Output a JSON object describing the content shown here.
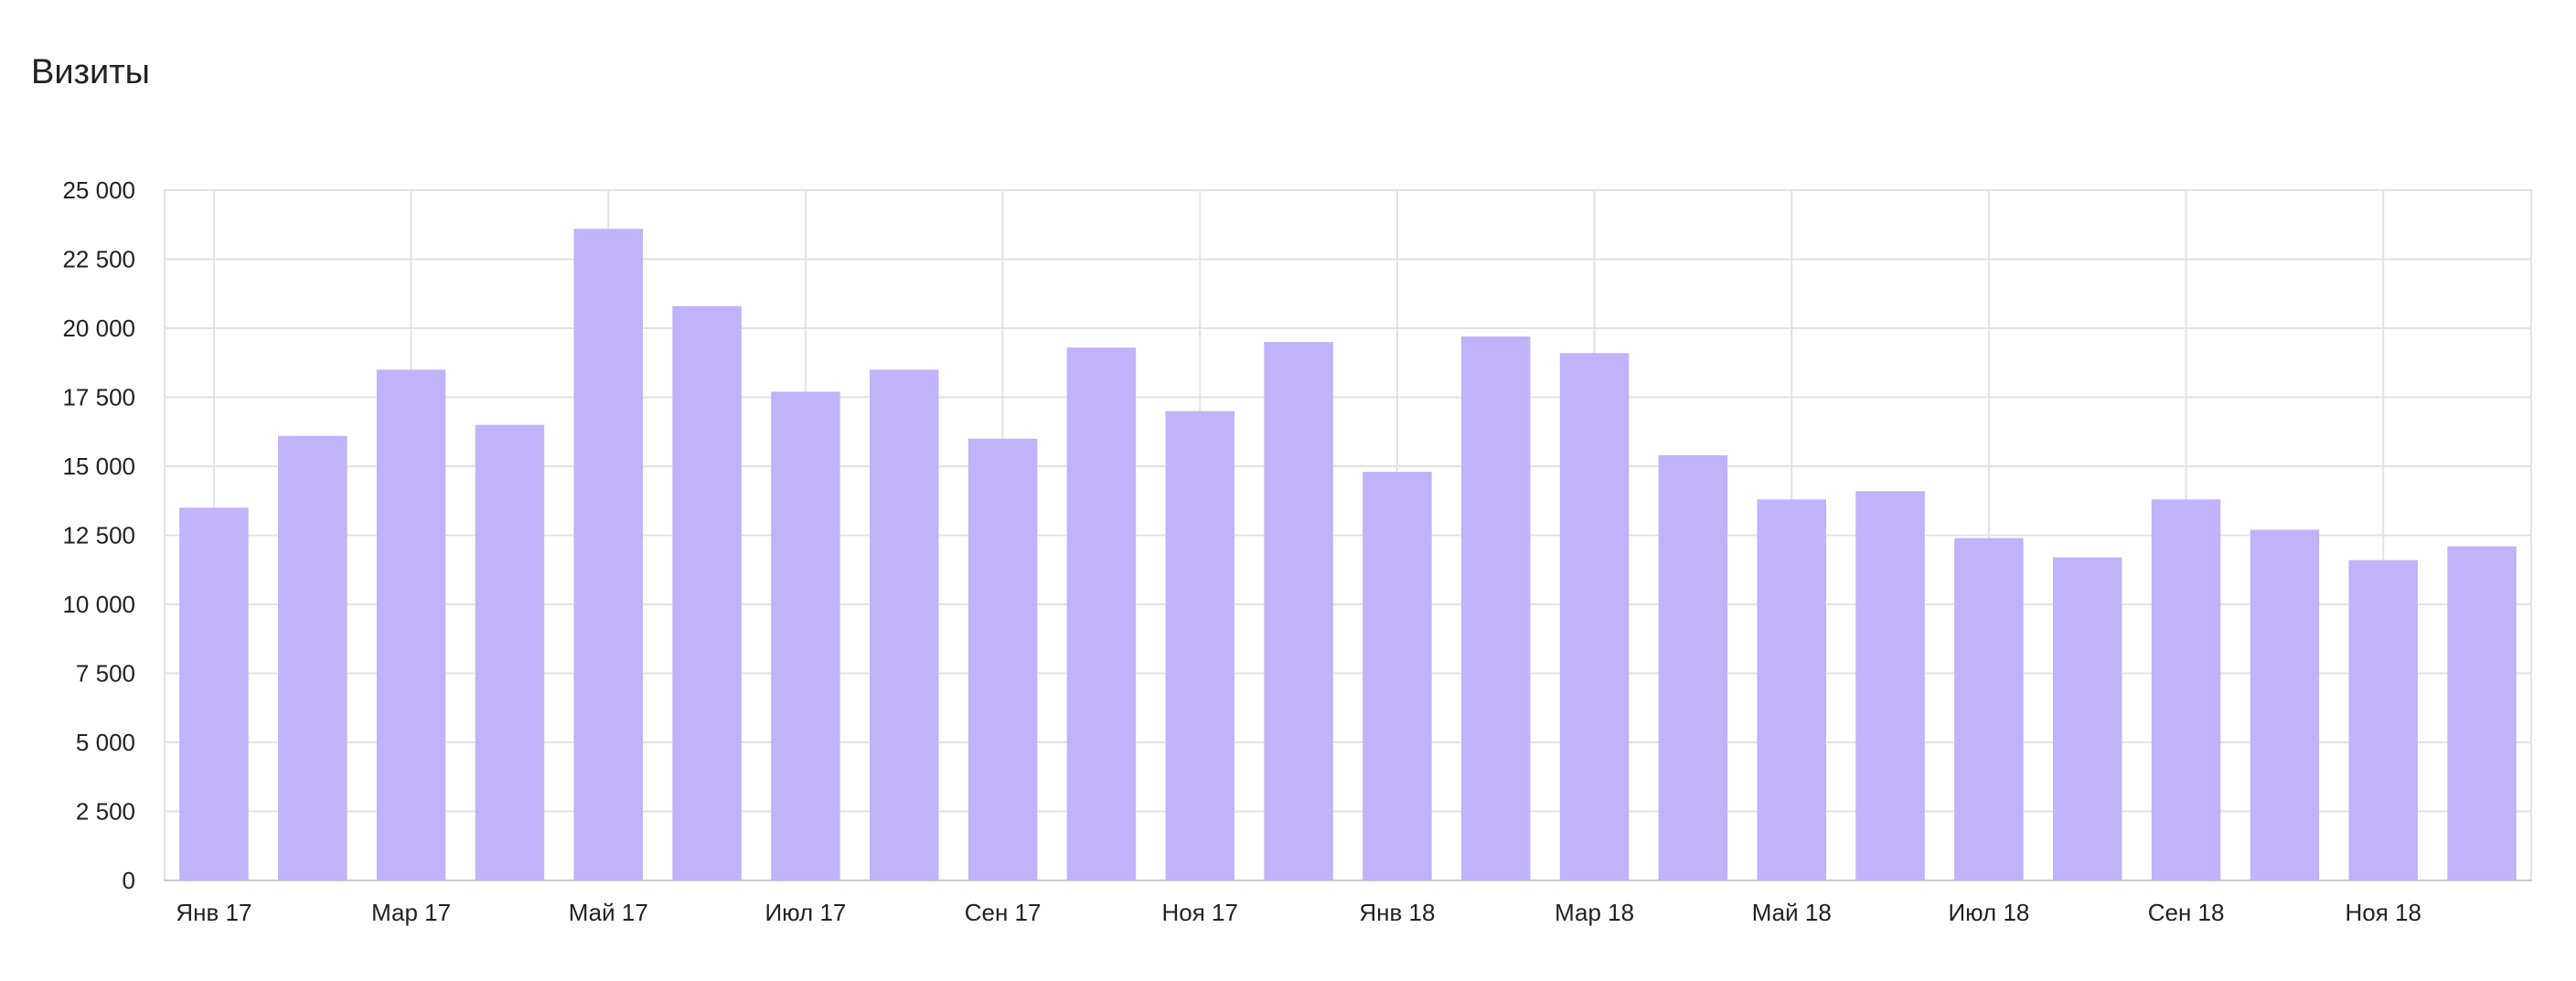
{
  "chart_data": {
    "type": "bar",
    "title": "Визиты",
    "xlabel": "",
    "ylabel": "",
    "ylim": [
      0,
      25000
    ],
    "y_ticks": [
      {
        "value": 0,
        "label": "0"
      },
      {
        "value": 2500,
        "label": "2 500"
      },
      {
        "value": 5000,
        "label": "5 000"
      },
      {
        "value": 7500,
        "label": "7 500"
      },
      {
        "value": 10000,
        "label": "10 000"
      },
      {
        "value": 12500,
        "label": "12 500"
      },
      {
        "value": 15000,
        "label": "15 000"
      },
      {
        "value": 17500,
        "label": "17 500"
      },
      {
        "value": 20000,
        "label": "20 000"
      },
      {
        "value": 22500,
        "label": "22 500"
      },
      {
        "value": 25000,
        "label": "25 000"
      }
    ],
    "categories": [
      "2017-01",
      "2017-02",
      "2017-03",
      "2017-04",
      "2017-05",
      "2017-06",
      "2017-07",
      "2017-08",
      "2017-09",
      "2017-10",
      "2017-11",
      "2017-12",
      "2018-01",
      "2018-02",
      "2018-03",
      "2018-04",
      "2018-05",
      "2018-06",
      "2018-07",
      "2018-08",
      "2018-09",
      "2018-10",
      "2018-11",
      "2018-12"
    ],
    "x_tick_labels": [
      "Янв 17",
      "",
      "Мар 17",
      "",
      "Май 17",
      "",
      "Июл 17",
      "",
      "Сен 17",
      "",
      "Ноя 17",
      "",
      "Янв 18",
      "",
      "Мар 18",
      "",
      "Май 18",
      "",
      "Июл 18",
      "",
      "Сен 18",
      "",
      "Ноя 18",
      ""
    ],
    "values": [
      13500,
      16100,
      18500,
      16500,
      23600,
      20800,
      17700,
      18500,
      16000,
      19300,
      17000,
      19500,
      14800,
      19700,
      19100,
      15400,
      13800,
      14100,
      12400,
      11700,
      13800,
      12700,
      11600,
      12100
    ],
    "colors": {
      "bar": "#c1b2f9",
      "grid": "#e3e3e3",
      "axis": "#cccccc",
      "text": "#222222"
    },
    "grid": true,
    "legend": "none"
  }
}
